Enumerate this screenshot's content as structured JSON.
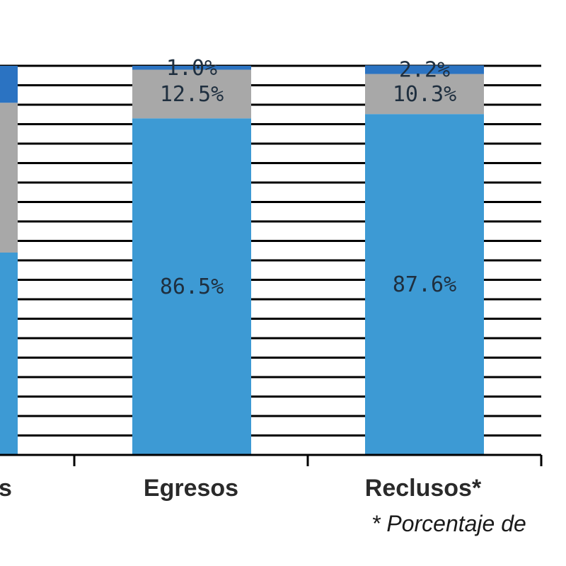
{
  "chart_data": {
    "type": "bar",
    "stacked": true,
    "normalized": true,
    "categories": [
      "s",
      "Egresos",
      "Reclusos*"
    ],
    "series": [
      {
        "values": [
          null,
          86.5,
          87.6
        ],
        "labels": [
          "",
          "86.5%",
          "87.6%"
        ],
        "color": "#3d9ad4"
      },
      {
        "values": [
          null,
          12.5,
          10.3
        ],
        "labels": [
          "",
          "12.5%",
          "10.3%"
        ],
        "color": "#a8a8a8"
      },
      {
        "values": [
          null,
          1.0,
          2.2
        ],
        "labels": [
          "",
          "1.0%",
          "2.2%"
        ],
        "color": "#2b73c2"
      }
    ],
    "partial_bar": {
      "segments": [
        {
          "from": 0,
          "to": 52,
          "color": "#3d9ad4"
        },
        {
          "from": 52,
          "to": 90.5,
          "color": "#a8a8a8"
        },
        {
          "from": 90.5,
          "to": 100,
          "color": "#2b73c2"
        }
      ]
    },
    "ylim": [
      0,
      100
    ],
    "grid": true,
    "footnote": "* Porcentaje de"
  }
}
